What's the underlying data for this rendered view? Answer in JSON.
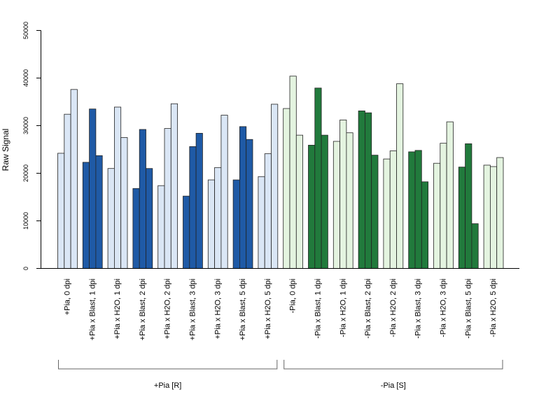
{
  "chart_data": {
    "type": "bar",
    "ylabel": "Raw Signal",
    "ylim": [
      0,
      50000
    ],
    "yticks": [
      0,
      10000,
      20000,
      30000,
      40000,
      50000
    ],
    "bars_per_group": 3,
    "categories": [
      "+Pia, 0 dpi",
      "+Pia x Blast, 1 dpi",
      "+Pia x H2O, 1 dpi",
      "+Pia x Blast, 2 dpi",
      "+Pia x H2O, 2 dpi",
      "+Pia x Blast, 3 dpi",
      "+Pia x H2O, 3 dpi",
      "+Pia x Blast, 5 dpi",
      "+Pia x H2O, 5 dpi",
      "-Pia, 0 dpi",
      "-Pia x Blast, 1 dpi",
      "-Pia x H2O, 1 dpi",
      "-Pia x Blast, 2 dpi",
      "-Pia x H2O, 2 dpi",
      "-Pia x Blast, 3 dpi",
      "-Pia x H2O, 3 dpi",
      "-Pia x Blast, 5 dpi",
      "-Pia x H2O, 5 dpi"
    ],
    "values": [
      [
        24200,
        32400,
        37600
      ],
      [
        22300,
        33500,
        23700
      ],
      [
        21000,
        33900,
        27500
      ],
      [
        16800,
        29200,
        21000
      ],
      [
        17400,
        29400,
        34600
      ],
      [
        15200,
        25600,
        28400
      ],
      [
        18600,
        21200,
        32200
      ],
      [
        18600,
        29800,
        27100
      ],
      [
        19300,
        24100,
        34500
      ],
      [
        33600,
        40400,
        28000
      ],
      [
        25900,
        37900,
        28000
      ],
      [
        26700,
        31200,
        28500
      ],
      [
        33100,
        32700,
        23800
      ],
      [
        23000,
        24700,
        38800
      ],
      [
        24500,
        24800,
        18200
      ],
      [
        22100,
        26300,
        30800
      ],
      [
        21300,
        26200,
        9400
      ],
      [
        21700,
        21400,
        23300
      ]
    ],
    "colors": [
      "#dae6f5",
      "#1f5aa6",
      "#dae6f5",
      "#1f5aa6",
      "#dae6f5",
      "#1f5aa6",
      "#dae6f5",
      "#1f5aa6",
      "#dae6f5",
      "#e4f4e0",
      "#217a3c",
      "#e4f4e0",
      "#217a3c",
      "#e4f4e0",
      "#217a3c",
      "#e4f4e0",
      "#217a3c",
      "#e4f4e0"
    ],
    "groups": [
      {
        "label": "+Pia [R]",
        "from": 0,
        "to": 8
      },
      {
        "label": "-Pia [S]",
        "from": 9,
        "to": 17
      }
    ],
    "grid": false,
    "legend": "none"
  }
}
